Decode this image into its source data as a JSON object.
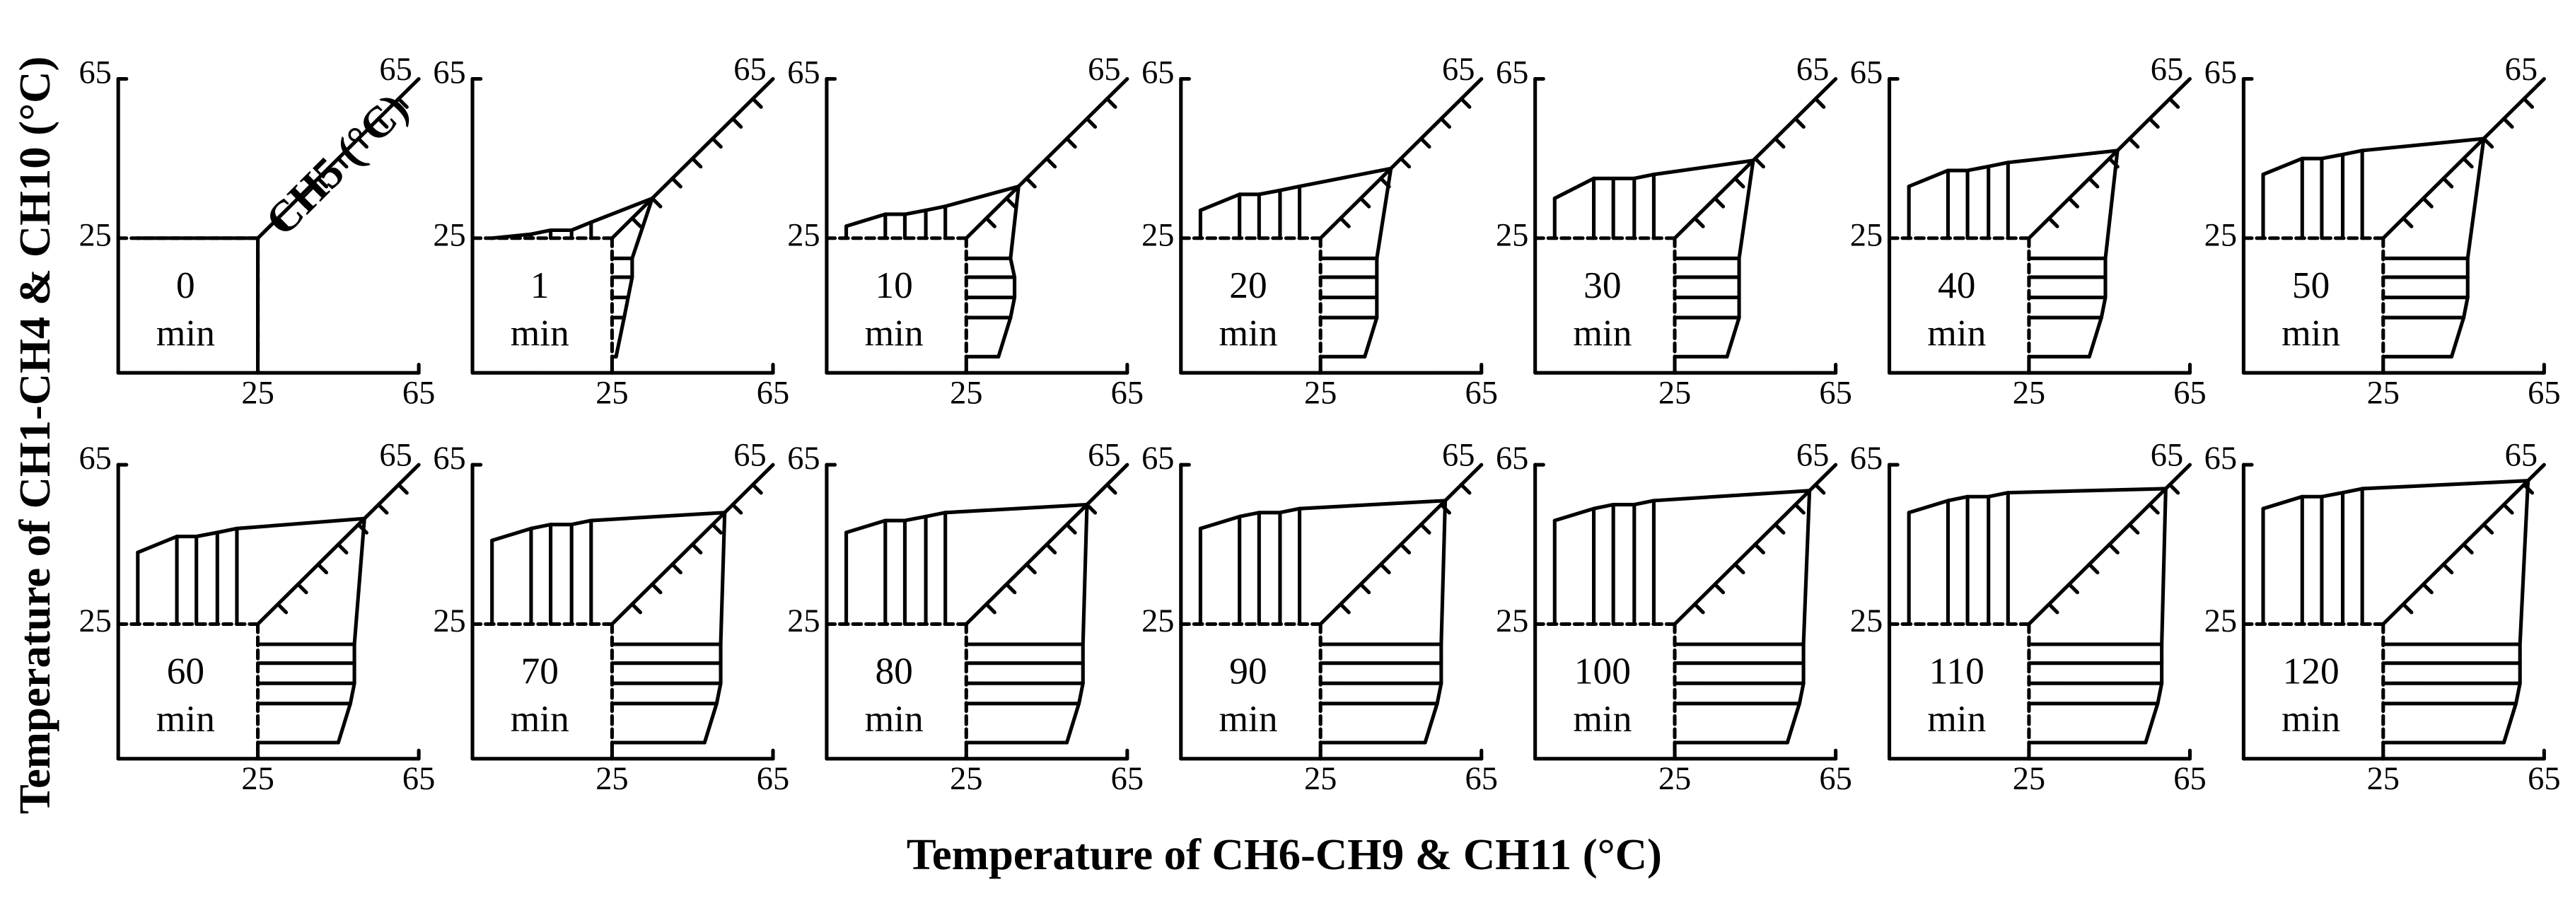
{
  "chart_data": {
    "type": "panel-profile",
    "ylabel": "Temperature of CH1-CH4 & CH10 (°C)",
    "xlabel": "Temperature of CH6-CH9 & CH11 (°C)",
    "diag_label": "CH5 (°C)",
    "time_unit": "min",
    "ylim": [
      25,
      65
    ],
    "yticks": [
      25,
      65
    ],
    "xlim": [
      25,
      65
    ],
    "xticks": [
      25,
      65
    ],
    "diag_lim": [
      25,
      65
    ],
    "diag_ticks": [
      65
    ],
    "panels": [
      {
        "time": 0,
        "top": [
          25,
          25,
          25,
          25,
          25
        ],
        "diag": 25,
        "bottom": [
          25,
          25,
          25,
          25,
          25
        ]
      },
      {
        "time": 1,
        "top": [
          25,
          26,
          27,
          27,
          29
        ],
        "diag": 35,
        "bottom": [
          30,
          30,
          29,
          28,
          26
        ]
      },
      {
        "time": 10,
        "top": [
          28,
          31,
          31,
          32,
          33
        ],
        "diag": 38,
        "bottom": [
          36,
          37,
          37,
          36,
          33
        ]
      },
      {
        "time": 20,
        "top": [
          32,
          36,
          36,
          37,
          38
        ],
        "diag": 42.5,
        "bottom": [
          39,
          39,
          39,
          39,
          36
        ]
      },
      {
        "time": 30,
        "top": [
          35,
          40,
          40,
          40,
          41
        ],
        "diag": 44.5,
        "bottom": [
          41,
          41,
          41,
          41,
          38
        ]
      },
      {
        "time": 40,
        "top": [
          38,
          42,
          42,
          43,
          44
        ],
        "diag": 47,
        "bottom": [
          44,
          44,
          44,
          43,
          40
        ]
      },
      {
        "time": 50,
        "top": [
          41,
          45,
          45,
          46,
          47
        ],
        "diag": 50,
        "bottom": [
          46,
          46,
          46,
          45,
          42
        ]
      },
      {
        "time": 60,
        "top": [
          43,
          47,
          47,
          48,
          49
        ],
        "diag": 51.5,
        "bottom": [
          49,
          49,
          49,
          48,
          45
        ]
      },
      {
        "time": 70,
        "top": [
          46,
          49,
          50,
          50,
          51
        ],
        "diag": 53,
        "bottom": [
          52,
          52,
          52,
          51,
          48
        ]
      },
      {
        "time": 80,
        "top": [
          48,
          51,
          51,
          52,
          53
        ],
        "diag": 55,
        "bottom": [
          54,
          54,
          54,
          53,
          50
        ]
      },
      {
        "time": 90,
        "top": [
          49,
          52,
          53,
          53,
          54
        ],
        "diag": 56,
        "bottom": [
          55,
          55,
          55,
          54,
          51
        ]
      },
      {
        "time": 100,
        "top": [
          51,
          54,
          55,
          55,
          56
        ],
        "diag": 58.5,
        "bottom": [
          57,
          57,
          57,
          56,
          53
        ]
      },
      {
        "time": 110,
        "top": [
          53,
          56,
          57,
          57,
          58
        ],
        "diag": 59,
        "bottom": [
          58,
          58,
          58,
          57,
          54
        ]
      },
      {
        "time": 120,
        "top": [
          54,
          57,
          57,
          58,
          59
        ],
        "diag": 61,
        "bottom": [
          59,
          59,
          59,
          58,
          55
        ]
      }
    ]
  }
}
